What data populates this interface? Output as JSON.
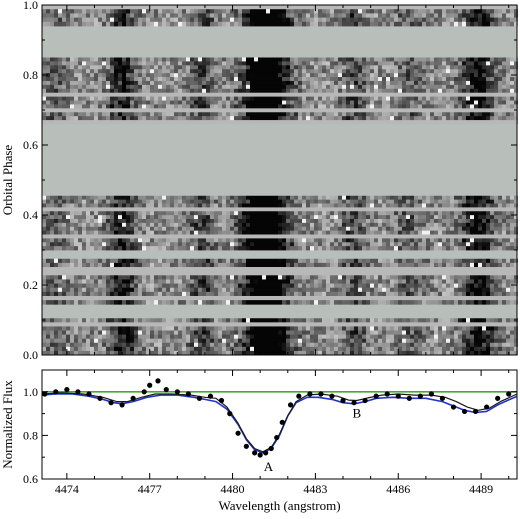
{
  "chart_data": [
    {
      "type": "heatmap",
      "ylabel": "Orbital Phase",
      "xlim": [
        4473.1,
        4490.3
      ],
      "ylim": [
        0.0,
        1.0
      ],
      "y_ticks": [
        "0.0",
        "0.2",
        "0.4",
        "0.6",
        "0.8",
        "1.0"
      ],
      "colormap": "grayscale trailed spectra (dark = absorption)",
      "observed_phase_bands": [
        [
          0.0,
          0.105
        ],
        [
          0.145,
          0.275
        ],
        [
          0.3,
          0.455
        ],
        [
          0.66,
          0.85
        ],
        [
          0.94,
          1.0
        ]
      ],
      "absorption_features": [
        {
          "center": 4481.2,
          "width": 0.55,
          "strength": 0.95
        },
        {
          "center": 4476.0,
          "width": 0.35,
          "strength": 0.45
        },
        {
          "center": 4478.9,
          "width": 0.3,
          "strength": 0.3
        },
        {
          "center": 4484.4,
          "width": 0.3,
          "strength": 0.3
        },
        {
          "center": 4488.9,
          "width": 0.4,
          "strength": 0.55
        },
        {
          "center": 4473.6,
          "width": 0.3,
          "strength": 0.2
        },
        {
          "center": 4486.4,
          "width": 0.35,
          "strength": 0.2
        }
      ]
    },
    {
      "type": "line",
      "xlabel": "Wavelength (angstrom)",
      "ylabel": "Normalized Flux",
      "xlim": [
        4473.1,
        4490.3
      ],
      "ylim": [
        0.6,
        1.1
      ],
      "x_ticks": [
        4474,
        4477,
        4480,
        4483,
        4486,
        4489
      ],
      "y_ticks": [
        "0.6",
        "0.8",
        "1.0"
      ],
      "series": [
        {
          "style": "points",
          "color": "#000000",
          "x": [
            4473.2,
            4473.6,
            4474.0,
            4474.4,
            4474.8,
            4475.2,
            4475.6,
            4476.0,
            4476.4,
            4476.8,
            4477.0,
            4477.3,
            4477.6,
            4478.0,
            4478.4,
            4478.8,
            4479.2,
            4479.6,
            4479.9,
            4480.2,
            4480.5,
            4480.8,
            4481.0,
            4481.2,
            4481.4,
            4481.6,
            4481.8,
            4482.1,
            4482.4,
            4482.8,
            4483.2,
            4483.6,
            4484.0,
            4484.4,
            4484.8,
            4485.2,
            4485.6,
            4486.0,
            4486.4,
            4486.8,
            4487.2,
            4487.6,
            4488.0,
            4488.4,
            4488.8,
            4489.2,
            4489.6,
            4490.0
          ],
          "y": [
            0.99,
            1.0,
            1.01,
            1.0,
            0.99,
            0.97,
            0.95,
            0.94,
            0.97,
            1.0,
            1.03,
            1.05,
            1.01,
            1.0,
            0.99,
            0.97,
            0.98,
            0.96,
            0.9,
            0.81,
            0.75,
            0.72,
            0.71,
            0.72,
            0.74,
            0.79,
            0.86,
            0.94,
            0.98,
            0.99,
            0.99,
            0.98,
            0.96,
            0.95,
            0.96,
            0.98,
            0.99,
            0.98,
            0.97,
            0.98,
            0.99,
            0.97,
            0.93,
            0.91,
            0.91,
            0.93,
            0.97,
            0.99
          ]
        },
        {
          "style": "line",
          "color": "#2233cc",
          "x": [
            4473.1,
            4473.6,
            4474.2,
            4474.8,
            4475.3,
            4475.7,
            4476.0,
            4476.4,
            4476.9,
            4477.4,
            4478.0,
            4478.6,
            4479.0,
            4479.4,
            4479.8,
            4480.2,
            4480.5,
            4480.8,
            4481.1,
            4481.4,
            4481.7,
            4482.0,
            4482.3,
            4482.7,
            4483.1,
            4483.6,
            4484.0,
            4484.4,
            4484.8,
            4485.2,
            4485.8,
            4486.4,
            4487.0,
            4487.6,
            4488.0,
            4488.4,
            4488.8,
            4489.2,
            4489.6,
            4490.3
          ],
          "y": [
            0.985,
            0.99,
            0.99,
            0.98,
            0.965,
            0.95,
            0.945,
            0.955,
            0.975,
            0.985,
            0.985,
            0.975,
            0.965,
            0.955,
            0.92,
            0.85,
            0.78,
            0.735,
            0.72,
            0.74,
            0.8,
            0.89,
            0.95,
            0.975,
            0.975,
            0.965,
            0.95,
            0.945,
            0.955,
            0.97,
            0.975,
            0.97,
            0.97,
            0.955,
            0.935,
            0.915,
            0.905,
            0.91,
            0.94,
            0.98
          ]
        },
        {
          "style": "line",
          "color": "#44aa33",
          "x": [
            4473.1,
            4490.3
          ],
          "y": [
            1.0,
            1.0
          ]
        },
        {
          "style": "line",
          "color": "#1a1a1a",
          "x": [
            4473.1,
            4473.8,
            4474.6,
            4475.3,
            4475.8,
            4476.2,
            4476.7,
            4477.2,
            4477.8,
            4478.5,
            4479.0,
            4479.4,
            4479.8,
            4480.2,
            4480.5,
            4480.8,
            4481.1,
            4481.4,
            4481.7,
            4482.0,
            4482.3,
            4482.7,
            4483.2,
            4483.8,
            4484.2,
            4484.5,
            4484.9,
            4485.4,
            4486.0,
            4486.6,
            4487.2,
            4487.7,
            4488.1,
            4488.5,
            4488.9,
            4489.3,
            4489.7,
            4490.3
          ],
          "y": [
            0.99,
            0.995,
            0.99,
            0.975,
            0.955,
            0.955,
            0.975,
            0.99,
            0.99,
            0.985,
            0.975,
            0.97,
            0.93,
            0.855,
            0.785,
            0.74,
            0.725,
            0.745,
            0.805,
            0.89,
            0.955,
            0.985,
            0.99,
            0.98,
            0.962,
            0.96,
            0.972,
            0.985,
            0.99,
            0.985,
            0.985,
            0.975,
            0.955,
            0.93,
            0.915,
            0.925,
            0.955,
            0.99
          ]
        }
      ],
      "annotations": [
        {
          "text": "A",
          "x": 4481.3,
          "y": 0.66
        },
        {
          "text": "B",
          "x": 4484.5,
          "y": 0.905
        }
      ]
    }
  ]
}
